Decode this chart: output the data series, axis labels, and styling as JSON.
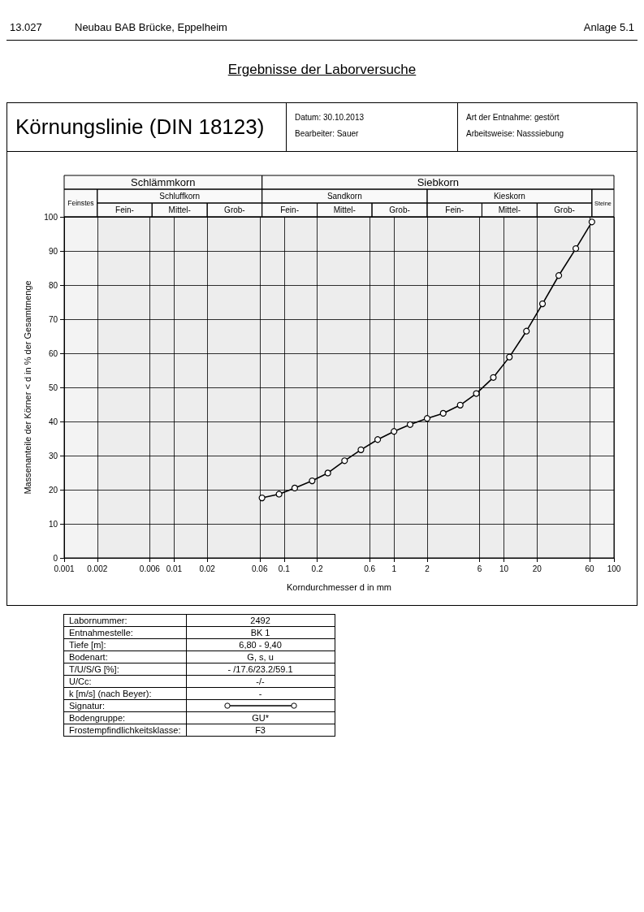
{
  "chart_data": {
    "type": "line",
    "title": "Körnungslinie (DIN 18123)",
    "subtitle": "Ergebnisse der Laborversuche",
    "xlabel": "Korndurchmesser d in mm",
    "ylabel": "Massenanteile der Körner < d in % der Gesamtmenge",
    "x": [
      63,
      45,
      31.5,
      22.4,
      16,
      11.2,
      8,
      5.6,
      4,
      2.8,
      2,
      1.4,
      1,
      0.71,
      0.5,
      0.355,
      0.25,
      0.18,
      0.125,
      0.09,
      0.063
    ],
    "values": [
      98.5,
      90.7,
      82.8,
      74.5,
      66.5,
      58.9,
      52.9,
      48.2,
      44.8,
      42.4,
      40.9,
      39.1,
      37.1,
      34.7,
      31.7,
      28.5,
      24.9,
      22.6,
      20.5,
      18.7,
      17.6
    ],
    "color": "#000000",
    "marker": "circle",
    "line_style": "solid",
    "log": "x",
    "grid": true,
    "xlim": [
      0.001,
      100
    ],
    "xticks": [
      0.001,
      0.002,
      0.006,
      0.01,
      0.02,
      0.06,
      0.1,
      0.2,
      0.6,
      1,
      2,
      6,
      10,
      20,
      60,
      100
    ],
    "ylim": [
      0,
      100
    ],
    "yticks": [
      0,
      10,
      20,
      30,
      40,
      50,
      60,
      70,
      80,
      90,
      100
    ],
    "bands": [
      {
        "axis": "x",
        "from": 0.001,
        "to": 0.063,
        "label": "Schlämmkorn"
      },
      {
        "axis": "x",
        "from": 0.063,
        "to": 100,
        "label": "Siebkorn"
      },
      {
        "axis": "x",
        "from": 0.001,
        "to": 0.002,
        "label": "Feinstes"
      },
      {
        "axis": "x",
        "from": 0.002,
        "to": 0.063,
        "label": "Schluffkorn"
      },
      {
        "axis": "x",
        "from": 0.063,
        "to": 2,
        "label": "Sandkorn"
      },
      {
        "axis": "x",
        "from": 2,
        "to": 63,
        "label": "Kieskorn"
      },
      {
        "axis": "x",
        "from": 63,
        "to": 100,
        "label": "Steine"
      },
      {
        "axis": "x",
        "from": 0.002,
        "to": 0.0063,
        "label": "Fein-"
      },
      {
        "axis": "x",
        "from": 0.0063,
        "to": 0.02,
        "label": "Mittel-"
      },
      {
        "axis": "x",
        "from": 0.02,
        "to": 0.063,
        "label": "Grob-"
      },
      {
        "axis": "x",
        "from": 0.063,
        "to": 0.2,
        "label": "Fein-"
      },
      {
        "axis": "x",
        "from": 0.2,
        "to": 0.63,
        "label": "Mittel-"
      },
      {
        "axis": "x",
        "from": 0.63,
        "to": 2,
        "label": "Grob-"
      },
      {
        "axis": "x",
        "from": 2,
        "to": 6.3,
        "label": "Fein-"
      },
      {
        "axis": "x",
        "from": 6.3,
        "to": 20,
        "label": "Mittel-"
      },
      {
        "axis": "x",
        "from": 20,
        "to": 63,
        "label": "Grob-"
      }
    ],
    "annotations": [
      "13.027",
      "Neubau BAB Brücke, Eppelheim",
      "Anlage 5.1",
      "Datum: 30.10.2013",
      "Bearbeiter: Sauer",
      "Art der Entnahme: gestört",
      "Arbeitsweise: Nasssiebung",
      "Labornummer:",
      "Entnahmestelle:",
      "Tiefe [m]:",
      "Bodenart:",
      "T/U/S/G [%]:",
      "U/Cc:",
      "k [m/s] (nach Beyer):",
      "Signatur:",
      "Bodengruppe:",
      "Frostempfindlichkeitsklasse:",
      "2492",
      "BK 1",
      "6,80 - 9,40",
      "G, s, u",
      "- /17.6/23.2/59.1",
      "-/-",
      "-",
      "GU*",
      "F3"
    ]
  }
}
